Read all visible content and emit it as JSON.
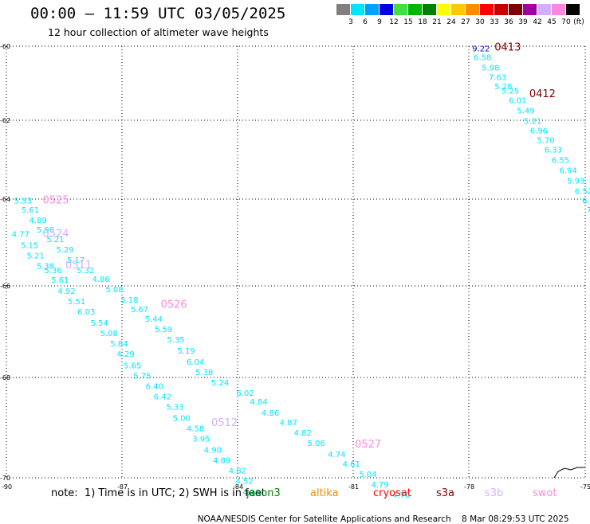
{
  "title": "00:00 – 11:59 UTC 03/05/2025",
  "subtitle": "12 hour collection of altimeter wave heights",
  "scale": {
    "unit": "(ft)",
    "items": [
      {
        "label": "3",
        "color": "#808080"
      },
      {
        "label": "6",
        "color": "#00e5ff"
      },
      {
        "label": "9",
        "color": "#00a0ff"
      },
      {
        "label": "12",
        "color": "#0000e0"
      },
      {
        "label": "15",
        "color": "#44dd44"
      },
      {
        "label": "18",
        "color": "#00b800"
      },
      {
        "label": "21",
        "color": "#008000"
      },
      {
        "label": "24",
        "color": "#ffff00"
      },
      {
        "label": "27",
        "color": "#ffc800"
      },
      {
        "label": "30",
        "color": "#ff8c00"
      },
      {
        "label": "33",
        "color": "#ff0000"
      },
      {
        "label": "36",
        "color": "#c80000"
      },
      {
        "label": "39",
        "color": "#800000"
      },
      {
        "label": "42",
        "color": "#a000a0"
      },
      {
        "label": "45",
        "color": "#d0b0ff"
      },
      {
        "label": "70",
        "color": "#ff88dd"
      },
      {
        "label": "",
        "color": "#000000"
      }
    ]
  },
  "map": {
    "lon_range": [
      -90,
      -75
    ],
    "lat_range": [
      -70,
      -60
    ],
    "lon_ticks": [
      "-90",
      "-87",
      "-84",
      "-81",
      "-78",
      "-75"
    ],
    "lat_ticks": [
      "-60",
      "-62",
      "-64",
      "-66",
      "-68",
      "-70"
    ],
    "grid": "dotted",
    "pass_labels": [
      {
        "text": "0413",
        "lon": -77.35,
        "lat": -60.1,
        "color": "#800000"
      },
      {
        "text": "0412",
        "lon": -76.45,
        "lat": -61.18,
        "color": "#800000"
      },
      {
        "text": "0525",
        "lon": -89.06,
        "lat": -63.64,
        "color": "#ff88dd"
      },
      {
        "text": "0524",
        "lon": -89.06,
        "lat": -64.42,
        "color": "#d0b0ff"
      },
      {
        "text": "0511",
        "lon": -88.47,
        "lat": -65.15,
        "color": "#d0b0ff"
      },
      {
        "text": "0526",
        "lon": -86.0,
        "lat": -66.06,
        "color": "#ff88dd"
      },
      {
        "text": "0512",
        "lon": -84.69,
        "lat": -68.8,
        "color": "#d0b0ff"
      },
      {
        "text": "0527",
        "lon": -80.97,
        "lat": -69.3,
        "color": "#ff88dd"
      }
    ],
    "points": [
      {
        "v": "9.22",
        "lon": -77.93,
        "lat": -60.12,
        "c": "#0000e0"
      },
      {
        "v": "6.58",
        "lon": -77.89,
        "lat": -60.32,
        "c": "#00e5ff"
      },
      {
        "v": "5.98",
        "lon": -77.68,
        "lat": -60.56,
        "c": "#00e5ff"
      },
      {
        "v": "7.63",
        "lon": -77.5,
        "lat": -60.78,
        "c": "#00e5ff"
      },
      {
        "v": "5.28",
        "lon": -77.35,
        "lat": -61.0,
        "c": "#00e5ff"
      },
      {
        "v": "5.25",
        "lon": -77.17,
        "lat": -61.1,
        "c": "#00e5ff"
      },
      {
        "v": "6.01",
        "lon": -76.98,
        "lat": -61.32,
        "c": "#00e5ff"
      },
      {
        "v": "5.49",
        "lon": -76.77,
        "lat": -61.56,
        "c": "#00e5ff"
      },
      {
        "v": "5.21",
        "lon": -76.59,
        "lat": -61.8,
        "c": "#00e5ff"
      },
      {
        "v": "6.96",
        "lon": -76.43,
        "lat": -62.02,
        "c": "#00e5ff"
      },
      {
        "v": "5.70",
        "lon": -76.25,
        "lat": -62.24,
        "c": "#00e5ff"
      },
      {
        "v": "6.33",
        "lon": -76.06,
        "lat": -62.46,
        "c": "#00e5ff"
      },
      {
        "v": "6.55",
        "lon": -75.87,
        "lat": -62.7,
        "c": "#00e5ff"
      },
      {
        "v": "6.94",
        "lon": -75.67,
        "lat": -62.94,
        "c": "#00e5ff"
      },
      {
        "v": "5.93",
        "lon": -75.47,
        "lat": -63.18,
        "c": "#00e5ff"
      },
      {
        "v": "6.52",
        "lon": -75.27,
        "lat": -63.42,
        "c": "#00e5ff"
      },
      {
        "v": "6.8",
        "lon": -75.08,
        "lat": -63.64,
        "c": "#00e5ff"
      },
      {
        "v": "7",
        "lon": -74.96,
        "lat": -63.86,
        "c": "#00e5ff"
      },
      {
        "v": "5.53",
        "lon": -89.8,
        "lat": -63.64,
        "c": "#00e5ff"
      },
      {
        "v": "5.61",
        "lon": -89.61,
        "lat": -63.86,
        "c": "#00e5ff"
      },
      {
        "v": "4.89",
        "lon": -89.41,
        "lat": -64.1,
        "c": "#00e5ff"
      },
      {
        "v": "5.96",
        "lon": -89.22,
        "lat": -64.32,
        "c": "#00e5ff"
      },
      {
        "v": "5.21",
        "lon": -88.96,
        "lat": -64.54,
        "c": "#00e5ff"
      },
      {
        "v": "5.29",
        "lon": -88.71,
        "lat": -64.78,
        "c": "#00e5ff"
      },
      {
        "v": "5.17",
        "lon": -88.43,
        "lat": -65.02,
        "c": "#00e5ff"
      },
      {
        "v": "5.32",
        "lon": -88.18,
        "lat": -65.26,
        "c": "#00e5ff"
      },
      {
        "v": "4.86",
        "lon": -87.78,
        "lat": -65.46,
        "c": "#00e5ff"
      },
      {
        "v": "5.08",
        "lon": -87.43,
        "lat": -65.7,
        "c": "#00e5ff"
      },
      {
        "v": "5.18",
        "lon": -87.04,
        "lat": -65.94,
        "c": "#00e5ff"
      },
      {
        "v": "5.67",
        "lon": -86.78,
        "lat": -66.16,
        "c": "#00e5ff"
      },
      {
        "v": "5.44",
        "lon": -86.41,
        "lat": -66.38,
        "c": "#00e5ff"
      },
      {
        "v": "5.59",
        "lon": -86.16,
        "lat": -66.62,
        "c": "#00e5ff"
      },
      {
        "v": "5.35",
        "lon": -85.84,
        "lat": -66.86,
        "c": "#00e5ff"
      },
      {
        "v": "5.19",
        "lon": -85.57,
        "lat": -67.12,
        "c": "#00e5ff"
      },
      {
        "v": "6.04",
        "lon": -85.33,
        "lat": -67.38,
        "c": "#00e5ff"
      },
      {
        "v": "5.38",
        "lon": -85.1,
        "lat": -67.62,
        "c": "#00e5ff"
      },
      {
        "v": "5.24",
        "lon": -84.69,
        "lat": -67.86,
        "c": "#00e5ff"
      },
      {
        "v": "6.02",
        "lon": -84.04,
        "lat": -68.1,
        "c": "#00e5ff"
      },
      {
        "v": "4.84",
        "lon": -83.69,
        "lat": -68.3,
        "c": "#00e5ff"
      },
      {
        "v": "4.86",
        "lon": -83.39,
        "lat": -68.56,
        "c": "#00e5ff"
      },
      {
        "v": "4.87",
        "lon": -82.92,
        "lat": -68.78,
        "c": "#00e5ff"
      },
      {
        "v": "4.82",
        "lon": -82.55,
        "lat": -69.02,
        "c": "#00e5ff"
      },
      {
        "v": "5.06",
        "lon": -82.2,
        "lat": -69.26,
        "c": "#00e5ff"
      },
      {
        "v": "4.74",
        "lon": -81.67,
        "lat": -69.52,
        "c": "#00e5ff"
      },
      {
        "v": "4.61",
        "lon": -81.29,
        "lat": -69.74,
        "c": "#00e5ff"
      },
      {
        "v": "5.04",
        "lon": -80.86,
        "lat": -69.98,
        "c": "#00e5ff"
      },
      {
        "v": "4.79",
        "lon": -80.55,
        "lat": -70.22,
        "c": "#00e5ff"
      },
      {
        "v": "4.76",
        "lon": -80.0,
        "lat": -70.46,
        "c": "#00e5ff"
      },
      {
        "v": "4.77",
        "lon": -89.86,
        "lat": -64.42,
        "c": "#00e5ff"
      },
      {
        "v": "5.15",
        "lon": -89.63,
        "lat": -64.68,
        "c": "#00e5ff"
      },
      {
        "v": "5.21",
        "lon": -89.47,
        "lat": -64.92,
        "c": "#00e5ff"
      },
      {
        "v": "5.38",
        "lon": -89.22,
        "lat": -65.16,
        "c": "#00e5ff"
      },
      {
        "v": "5.36",
        "lon": -89.02,
        "lat": -65.26,
        "c": "#00e5ff"
      },
      {
        "v": "5.61",
        "lon": -88.84,
        "lat": -65.48,
        "c": "#00e5ff"
      },
      {
        "v": "4.92",
        "lon": -88.67,
        "lat": -65.74,
        "c": "#00e5ff"
      },
      {
        "v": "5.51",
        "lon": -88.41,
        "lat": -65.98,
        "c": "#00e5ff"
      },
      {
        "v": "6.03",
        "lon": -88.16,
        "lat": -66.22,
        "c": "#00e5ff"
      },
      {
        "v": "5.54",
        "lon": -87.82,
        "lat": -66.48,
        "c": "#00e5ff"
      },
      {
        "v": "5.08",
        "lon": -87.57,
        "lat": -66.72,
        "c": "#00e5ff"
      },
      {
        "v": "5.84",
        "lon": -87.31,
        "lat": -66.96,
        "c": "#00e5ff"
      },
      {
        "v": "4.29",
        "lon": -87.14,
        "lat": -67.2,
        "c": "#00e5ff"
      },
      {
        "v": "5.65",
        "lon": -86.96,
        "lat": -67.46,
        "c": "#00e5ff"
      },
      {
        "v": "5.75",
        "lon": -86.71,
        "lat": -67.7,
        "c": "#00e5ff"
      },
      {
        "v": "6.40",
        "lon": -86.39,
        "lat": -67.94,
        "c": "#00e5ff"
      },
      {
        "v": "6.42",
        "lon": -86.18,
        "lat": -68.18,
        "c": "#00e5ff"
      },
      {
        "v": "5.33",
        "lon": -85.86,
        "lat": -68.42,
        "c": "#00e5ff"
      },
      {
        "v": "5.00",
        "lon": -85.69,
        "lat": -68.68,
        "c": "#00e5ff"
      },
      {
        "v": "4.58",
        "lon": -85.33,
        "lat": -68.92,
        "c": "#00e5ff"
      },
      {
        "v": "3.95",
        "lon": -85.18,
        "lat": -69.16,
        "c": "#00e5ff"
      },
      {
        "v": "4.90",
        "lon": -84.88,
        "lat": -69.42,
        "c": "#00e5ff"
      },
      {
        "v": "4.89",
        "lon": -84.65,
        "lat": -69.66,
        "c": "#00e5ff"
      },
      {
        "v": "4.82",
        "lon": -84.24,
        "lat": -69.9,
        "c": "#00e5ff"
      },
      {
        "v": "4.52",
        "lon": -84.06,
        "lat": -70.14,
        "c": "#00e5ff"
      },
      {
        "v": "4.13",
        "lon": -83.88,
        "lat": -70.4,
        "c": "#00e5ff"
      }
    ]
  },
  "footer": {
    "note": "note:  1) Time is in UTC; 2) SWH is in feet",
    "missions": [
      {
        "name": "jason3",
        "color": "#008000"
      },
      {
        "name": "altika",
        "color": "#ff8c00"
      },
      {
        "name": "cryosat",
        "color": "#ff0000"
      },
      {
        "name": "s3a",
        "color": "#800000"
      },
      {
        "name": "s3b",
        "color": "#d0b0ff"
      },
      {
        "name": "swot",
        "color": "#ff88dd"
      }
    ],
    "credit_left": "NOAA/NESDIS Center for Satellite Applications and Research",
    "credit_right": "8 Mar 08:29:53 UTC 2025"
  }
}
